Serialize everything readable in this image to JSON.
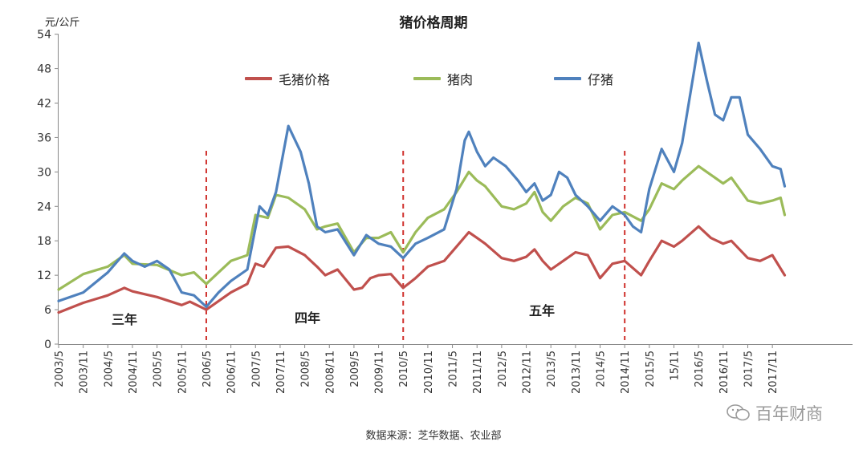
{
  "chart_data": {
    "type": "line",
    "title": "猪价格周期",
    "ylabel": "元/公斤",
    "xlabel": "",
    "ylim": [
      0,
      54
    ],
    "yticks": [
      0,
      6,
      12,
      18,
      24,
      30,
      36,
      42,
      48,
      54
    ],
    "x_ticks": [
      "2003/5",
      "2003/11",
      "2004/5",
      "2004/11",
      "2005/5",
      "2005/11",
      "2006/5",
      "2006/11",
      "2007/5",
      "2007/11",
      "2008/5",
      "2008/11",
      "2009/5",
      "2009/11",
      "2010/5",
      "2010/11",
      "2011/5",
      "2011/11",
      "2012/5",
      "2012/11",
      "2013/5",
      "2013/11",
      "2014/5",
      "2014/11",
      "2015/5",
      "15/11",
      "2016/5",
      "2016/11",
      "2017/5",
      "2017/11"
    ],
    "x_start": "2003/5",
    "grid": false,
    "legend_position": "top",
    "series": [
      {
        "name": "毛猪价格",
        "color": "#c0504d",
        "points": [
          [
            "2003/5",
            5.5
          ],
          [
            "2003/11",
            7.2
          ],
          [
            "2004/5",
            8.5
          ],
          [
            "2004/9",
            9.8
          ],
          [
            "2004/11",
            9.2
          ],
          [
            "2005/5",
            8.2
          ],
          [
            "2005/11",
            6.8
          ],
          [
            "2006/1",
            7.4
          ],
          [
            "2006/5",
            6.0
          ],
          [
            "2006/8",
            7.5
          ],
          [
            "2006/11",
            9.0
          ],
          [
            "2007/3",
            10.5
          ],
          [
            "2007/5",
            14.0
          ],
          [
            "2007/7",
            13.5
          ],
          [
            "2007/10",
            16.8
          ],
          [
            "2008/1",
            17.0
          ],
          [
            "2008/5",
            15.5
          ],
          [
            "2008/8",
            13.5
          ],
          [
            "2008/10",
            12.0
          ],
          [
            "2009/1",
            13.0
          ],
          [
            "2009/5",
            9.5
          ],
          [
            "2009/7",
            9.8
          ],
          [
            "2009/9",
            11.5
          ],
          [
            "2009/11",
            12.0
          ],
          [
            "2010/2",
            12.2
          ],
          [
            "2010/5",
            9.8
          ],
          [
            "2010/8",
            11.5
          ],
          [
            "2010/11",
            13.5
          ],
          [
            "2011/3",
            14.5
          ],
          [
            "2011/6",
            17.0
          ],
          [
            "2011/9",
            19.5
          ],
          [
            "2011/11",
            18.5
          ],
          [
            "2012/1",
            17.5
          ],
          [
            "2012/5",
            15.0
          ],
          [
            "2012/8",
            14.5
          ],
          [
            "2012/11",
            15.2
          ],
          [
            "2013/1",
            16.5
          ],
          [
            "2013/3",
            14.5
          ],
          [
            "2013/5",
            13.0
          ],
          [
            "2013/8",
            14.5
          ],
          [
            "2013/11",
            16.0
          ],
          [
            "2014/2",
            15.5
          ],
          [
            "2014/5",
            11.5
          ],
          [
            "2014/8",
            14.0
          ],
          [
            "2014/11",
            14.5
          ],
          [
            "2015/3",
            12.0
          ],
          [
            "2015/5",
            14.5
          ],
          [
            "2015/8",
            18.0
          ],
          [
            "2015/11",
            17.0
          ],
          [
            "2016/1",
            18.0
          ],
          [
            "2016/5",
            20.5
          ],
          [
            "2016/8",
            18.5
          ],
          [
            "2016/11",
            17.5
          ],
          [
            "2017/1",
            18.0
          ],
          [
            "2017/5",
            15.0
          ],
          [
            "2017/8",
            14.5
          ],
          [
            "2017/11",
            15.5
          ],
          [
            "2018/2",
            12.0
          ]
        ]
      },
      {
        "name": "猪肉",
        "color": "#9bbb59",
        "points": [
          [
            "2003/5",
            9.5
          ],
          [
            "2003/11",
            12.2
          ],
          [
            "2004/5",
            13.5
          ],
          [
            "2004/9",
            15.5
          ],
          [
            "2004/11",
            14.0
          ],
          [
            "2005/5",
            13.8
          ],
          [
            "2005/11",
            12.0
          ],
          [
            "2006/2",
            12.5
          ],
          [
            "2006/5",
            10.5
          ],
          [
            "2006/8",
            12.5
          ],
          [
            "2006/11",
            14.5
          ],
          [
            "2007/3",
            15.5
          ],
          [
            "2007/5",
            22.5
          ],
          [
            "2007/8",
            22.0
          ],
          [
            "2007/10",
            26.0
          ],
          [
            "2008/1",
            25.5
          ],
          [
            "2008/5",
            23.5
          ],
          [
            "2008/8",
            20.0
          ],
          [
            "2008/10",
            20.5
          ],
          [
            "2009/1",
            21.0
          ],
          [
            "2009/5",
            16.0
          ],
          [
            "2009/8",
            18.5
          ],
          [
            "2009/11",
            18.5
          ],
          [
            "2010/2",
            19.5
          ],
          [
            "2010/5",
            16.0
          ],
          [
            "2010/8",
            19.5
          ],
          [
            "2010/11",
            22.0
          ],
          [
            "2011/3",
            23.5
          ],
          [
            "2011/6",
            26.5
          ],
          [
            "2011/9",
            30.0
          ],
          [
            "2011/11",
            28.5
          ],
          [
            "2012/1",
            27.5
          ],
          [
            "2012/5",
            24.0
          ],
          [
            "2012/8",
            23.5
          ],
          [
            "2012/11",
            24.5
          ],
          [
            "2013/1",
            26.5
          ],
          [
            "2013/3",
            23.0
          ],
          [
            "2013/5",
            21.5
          ],
          [
            "2013/8",
            24.0
          ],
          [
            "2013/11",
            25.5
          ],
          [
            "2014/2",
            24.5
          ],
          [
            "2014/5",
            20.0
          ],
          [
            "2014/8",
            22.5
          ],
          [
            "2014/11",
            23.0
          ],
          [
            "2015/3",
            21.5
          ],
          [
            "2015/5",
            23.5
          ],
          [
            "2015/8",
            28.0
          ],
          [
            "2015/11",
            27.0
          ],
          [
            "2016/1",
            28.5
          ],
          [
            "2016/5",
            31.0
          ],
          [
            "2016/8",
            29.5
          ],
          [
            "2016/11",
            28.0
          ],
          [
            "2017/1",
            29.0
          ],
          [
            "2017/5",
            25.0
          ],
          [
            "2017/8",
            24.5
          ],
          [
            "2017/11",
            25.0
          ],
          [
            "2018/1",
            25.5
          ],
          [
            "2018/2",
            22.5
          ]
        ]
      },
      {
        "name": "仔猪",
        "color": "#4f81bd",
        "points": [
          [
            "2003/5",
            7.5
          ],
          [
            "2003/11",
            9.0
          ],
          [
            "2004/5",
            12.5
          ],
          [
            "2004/9",
            15.8
          ],
          [
            "2004/11",
            14.5
          ],
          [
            "2005/2",
            13.5
          ],
          [
            "2005/5",
            14.5
          ],
          [
            "2005/8",
            13.0
          ],
          [
            "2005/11",
            9.0
          ],
          [
            "2006/2",
            8.5
          ],
          [
            "2006/5",
            6.5
          ],
          [
            "2006/8",
            9.0
          ],
          [
            "2006/11",
            11.0
          ],
          [
            "2007/3",
            13.0
          ],
          [
            "2007/6",
            24.0
          ],
          [
            "2007/8",
            22.5
          ],
          [
            "2007/10",
            26.5
          ],
          [
            "2008/1",
            38.0
          ],
          [
            "2008/4",
            33.5
          ],
          [
            "2008/6",
            28.0
          ],
          [
            "2008/8",
            20.5
          ],
          [
            "2008/10",
            19.5
          ],
          [
            "2009/1",
            20.0
          ],
          [
            "2009/5",
            15.5
          ],
          [
            "2009/8",
            19.0
          ],
          [
            "2009/11",
            17.5
          ],
          [
            "2010/2",
            17.0
          ],
          [
            "2010/5",
            15.0
          ],
          [
            "2010/8",
            17.5
          ],
          [
            "2010/11",
            18.5
          ],
          [
            "2011/3",
            20.0
          ],
          [
            "2011/6",
            27.0
          ],
          [
            "2011/8",
            35.5
          ],
          [
            "2011/9",
            37.0
          ],
          [
            "2011/11",
            33.5
          ],
          [
            "2012/1",
            31.0
          ],
          [
            "2012/3",
            32.5
          ],
          [
            "2012/6",
            31.0
          ],
          [
            "2012/9",
            28.5
          ],
          [
            "2012/11",
            26.5
          ],
          [
            "2013/1",
            28.0
          ],
          [
            "2013/3",
            25.0
          ],
          [
            "2013/5",
            26.0
          ],
          [
            "2013/7",
            30.0
          ],
          [
            "2013/9",
            29.0
          ],
          [
            "2013/11",
            26.0
          ],
          [
            "2014/2",
            24.0
          ],
          [
            "2014/5",
            21.5
          ],
          [
            "2014/8",
            24.0
          ],
          [
            "2014/11",
            22.5
          ],
          [
            "2015/1",
            20.5
          ],
          [
            "2015/3",
            19.5
          ],
          [
            "2015/5",
            27.0
          ],
          [
            "2015/8",
            34.0
          ],
          [
            "2015/11",
            30.0
          ],
          [
            "2016/1",
            35.0
          ],
          [
            "2016/4",
            48.0
          ],
          [
            "2016/5",
            52.5
          ],
          [
            "2016/7",
            46.0
          ],
          [
            "2016/9",
            40.0
          ],
          [
            "2016/11",
            39.0
          ],
          [
            "2017/1",
            43.0
          ],
          [
            "2017/3",
            43.0
          ],
          [
            "2017/5",
            36.5
          ],
          [
            "2017/8",
            34.0
          ],
          [
            "2017/11",
            31.0
          ],
          [
            "2018/1",
            30.5
          ],
          [
            "2018/2",
            27.5
          ]
        ]
      }
    ],
    "cycle_dividers": [
      "2006/5",
      "2010/5",
      "2014/11"
    ],
    "annotations": [
      "三年",
      "四年",
      "五年"
    ],
    "source": "数据来源：芝华数据、农业部"
  },
  "watermark": {
    "text": "百年财商",
    "icon": "wechat-icon"
  }
}
